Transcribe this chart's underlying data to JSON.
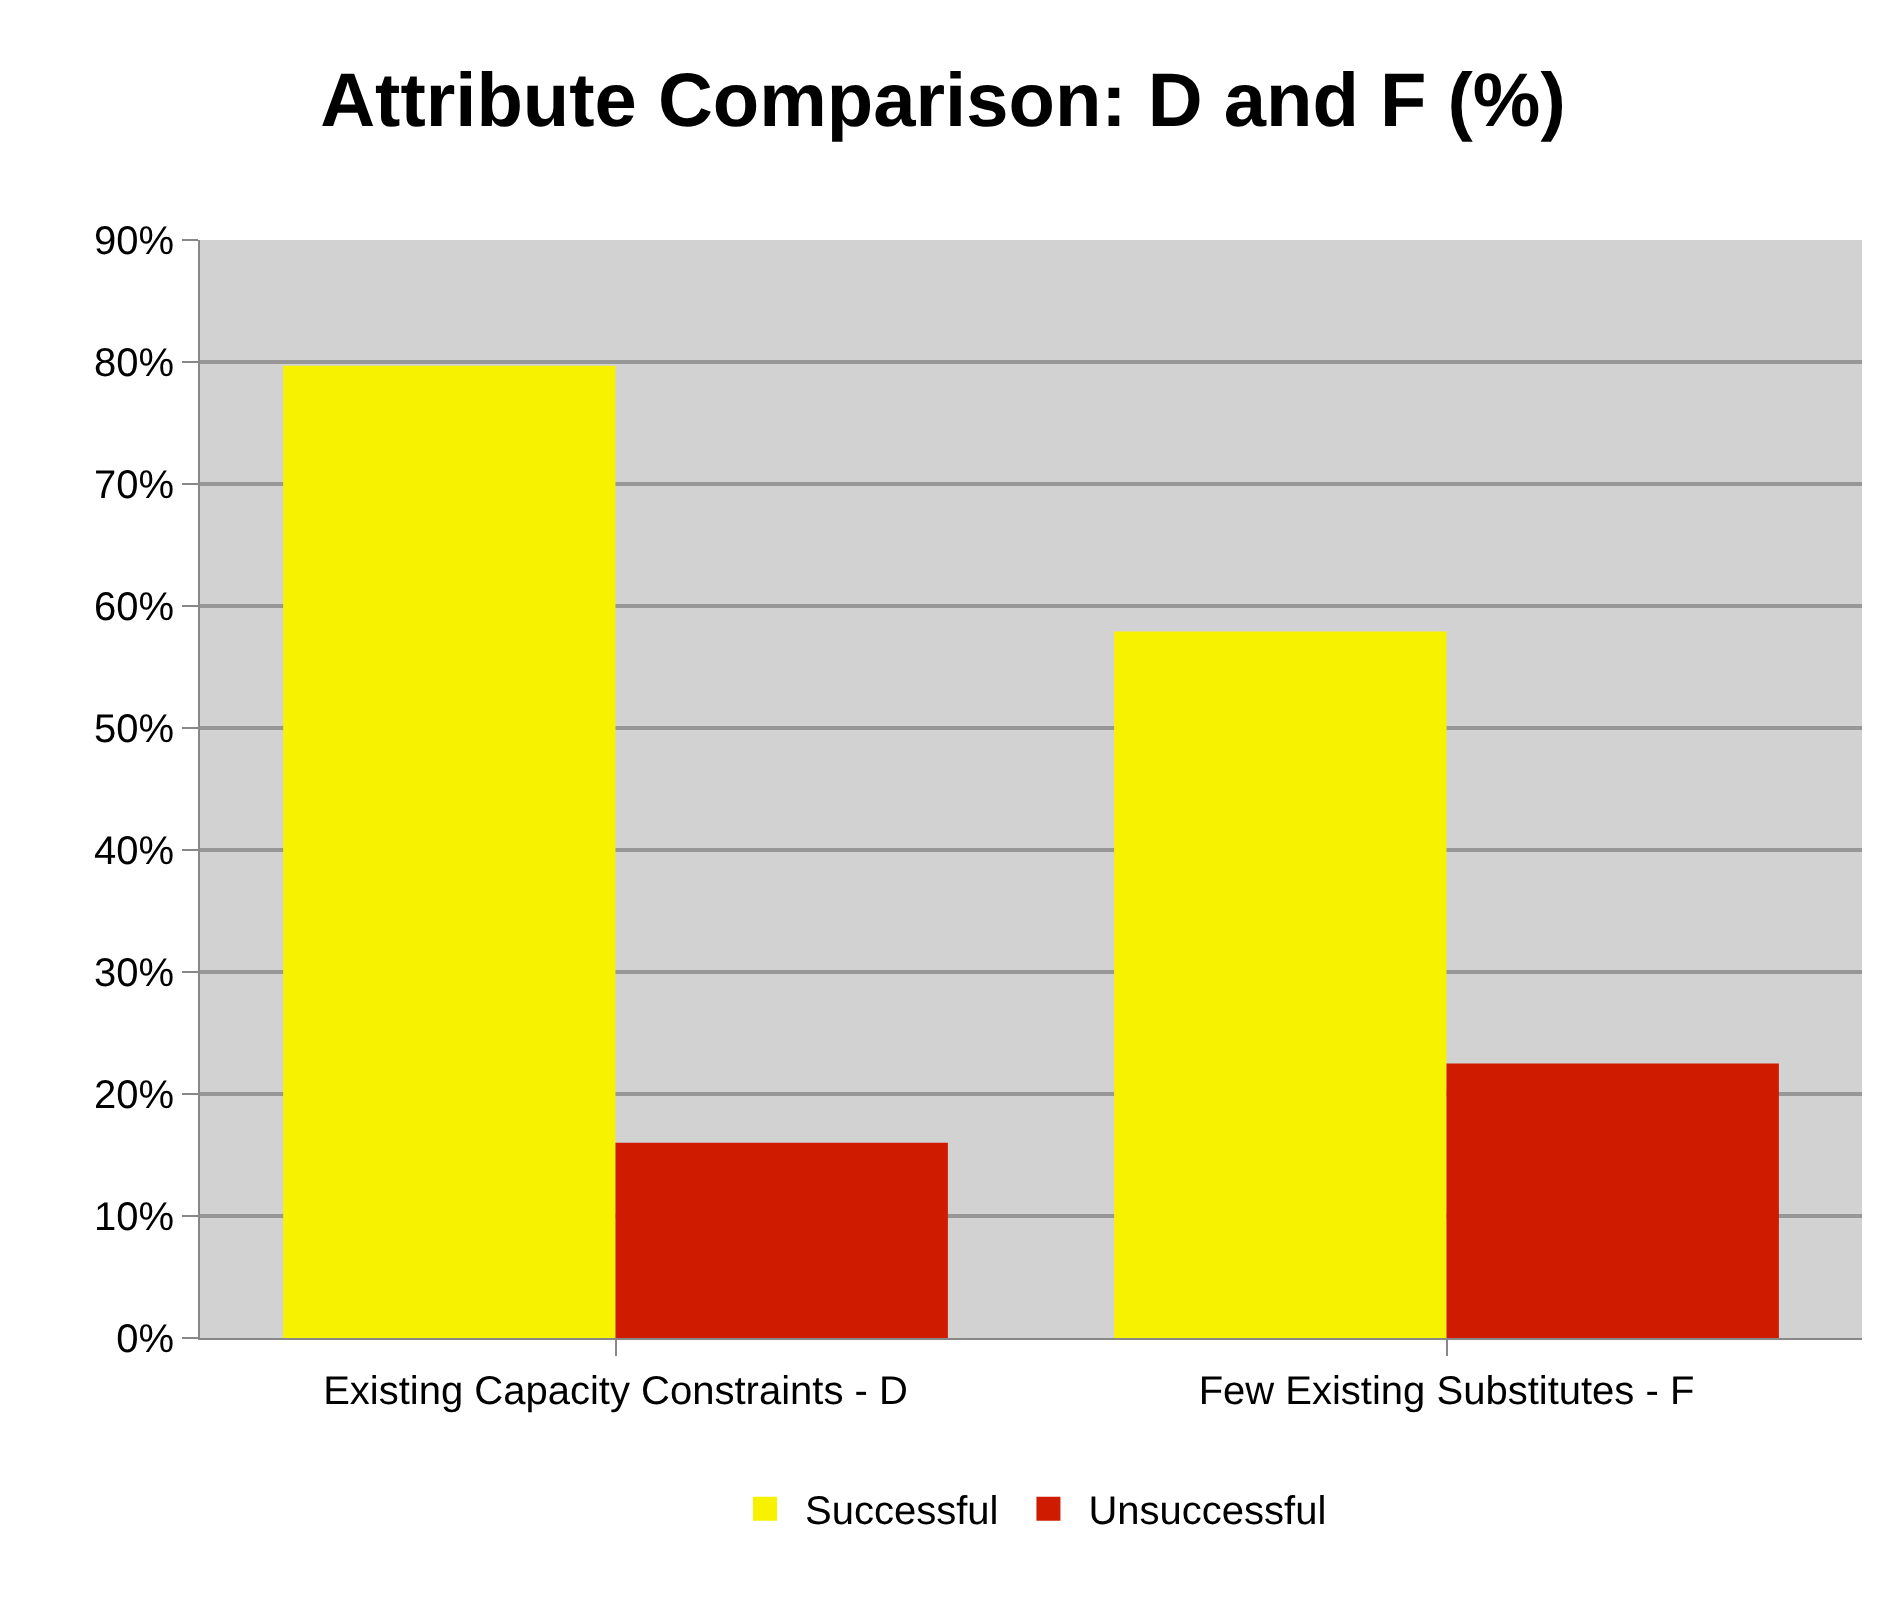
{
  "chart_data": {
    "type": "bar",
    "title": "Attribute Comparison: D and F (%)",
    "categories": [
      "Existing Capacity Constraints - D",
      "Few Existing Substitutes - F"
    ],
    "series": [
      {
        "name": "Successful",
        "color": "#f7f200",
        "values": [
          79.7,
          57.9
        ]
      },
      {
        "name": "Unsuccessful",
        "color": "#cf1c00",
        "values": [
          16.0,
          22.5
        ]
      }
    ],
    "ylim": [
      0,
      90
    ],
    "yticks": [
      {
        "value": 0,
        "label": "0%"
      },
      {
        "value": 10,
        "label": "10%"
      },
      {
        "value": 20,
        "label": "20%"
      },
      {
        "value": 30,
        "label": "30%"
      },
      {
        "value": 40,
        "label": "40%"
      },
      {
        "value": 50,
        "label": "50%"
      },
      {
        "value": 60,
        "label": "60%"
      },
      {
        "value": 70,
        "label": "70%"
      },
      {
        "value": 80,
        "label": "80%"
      },
      {
        "value": 90,
        "label": "90%"
      }
    ],
    "grid": "y",
    "legend": "bottom"
  }
}
